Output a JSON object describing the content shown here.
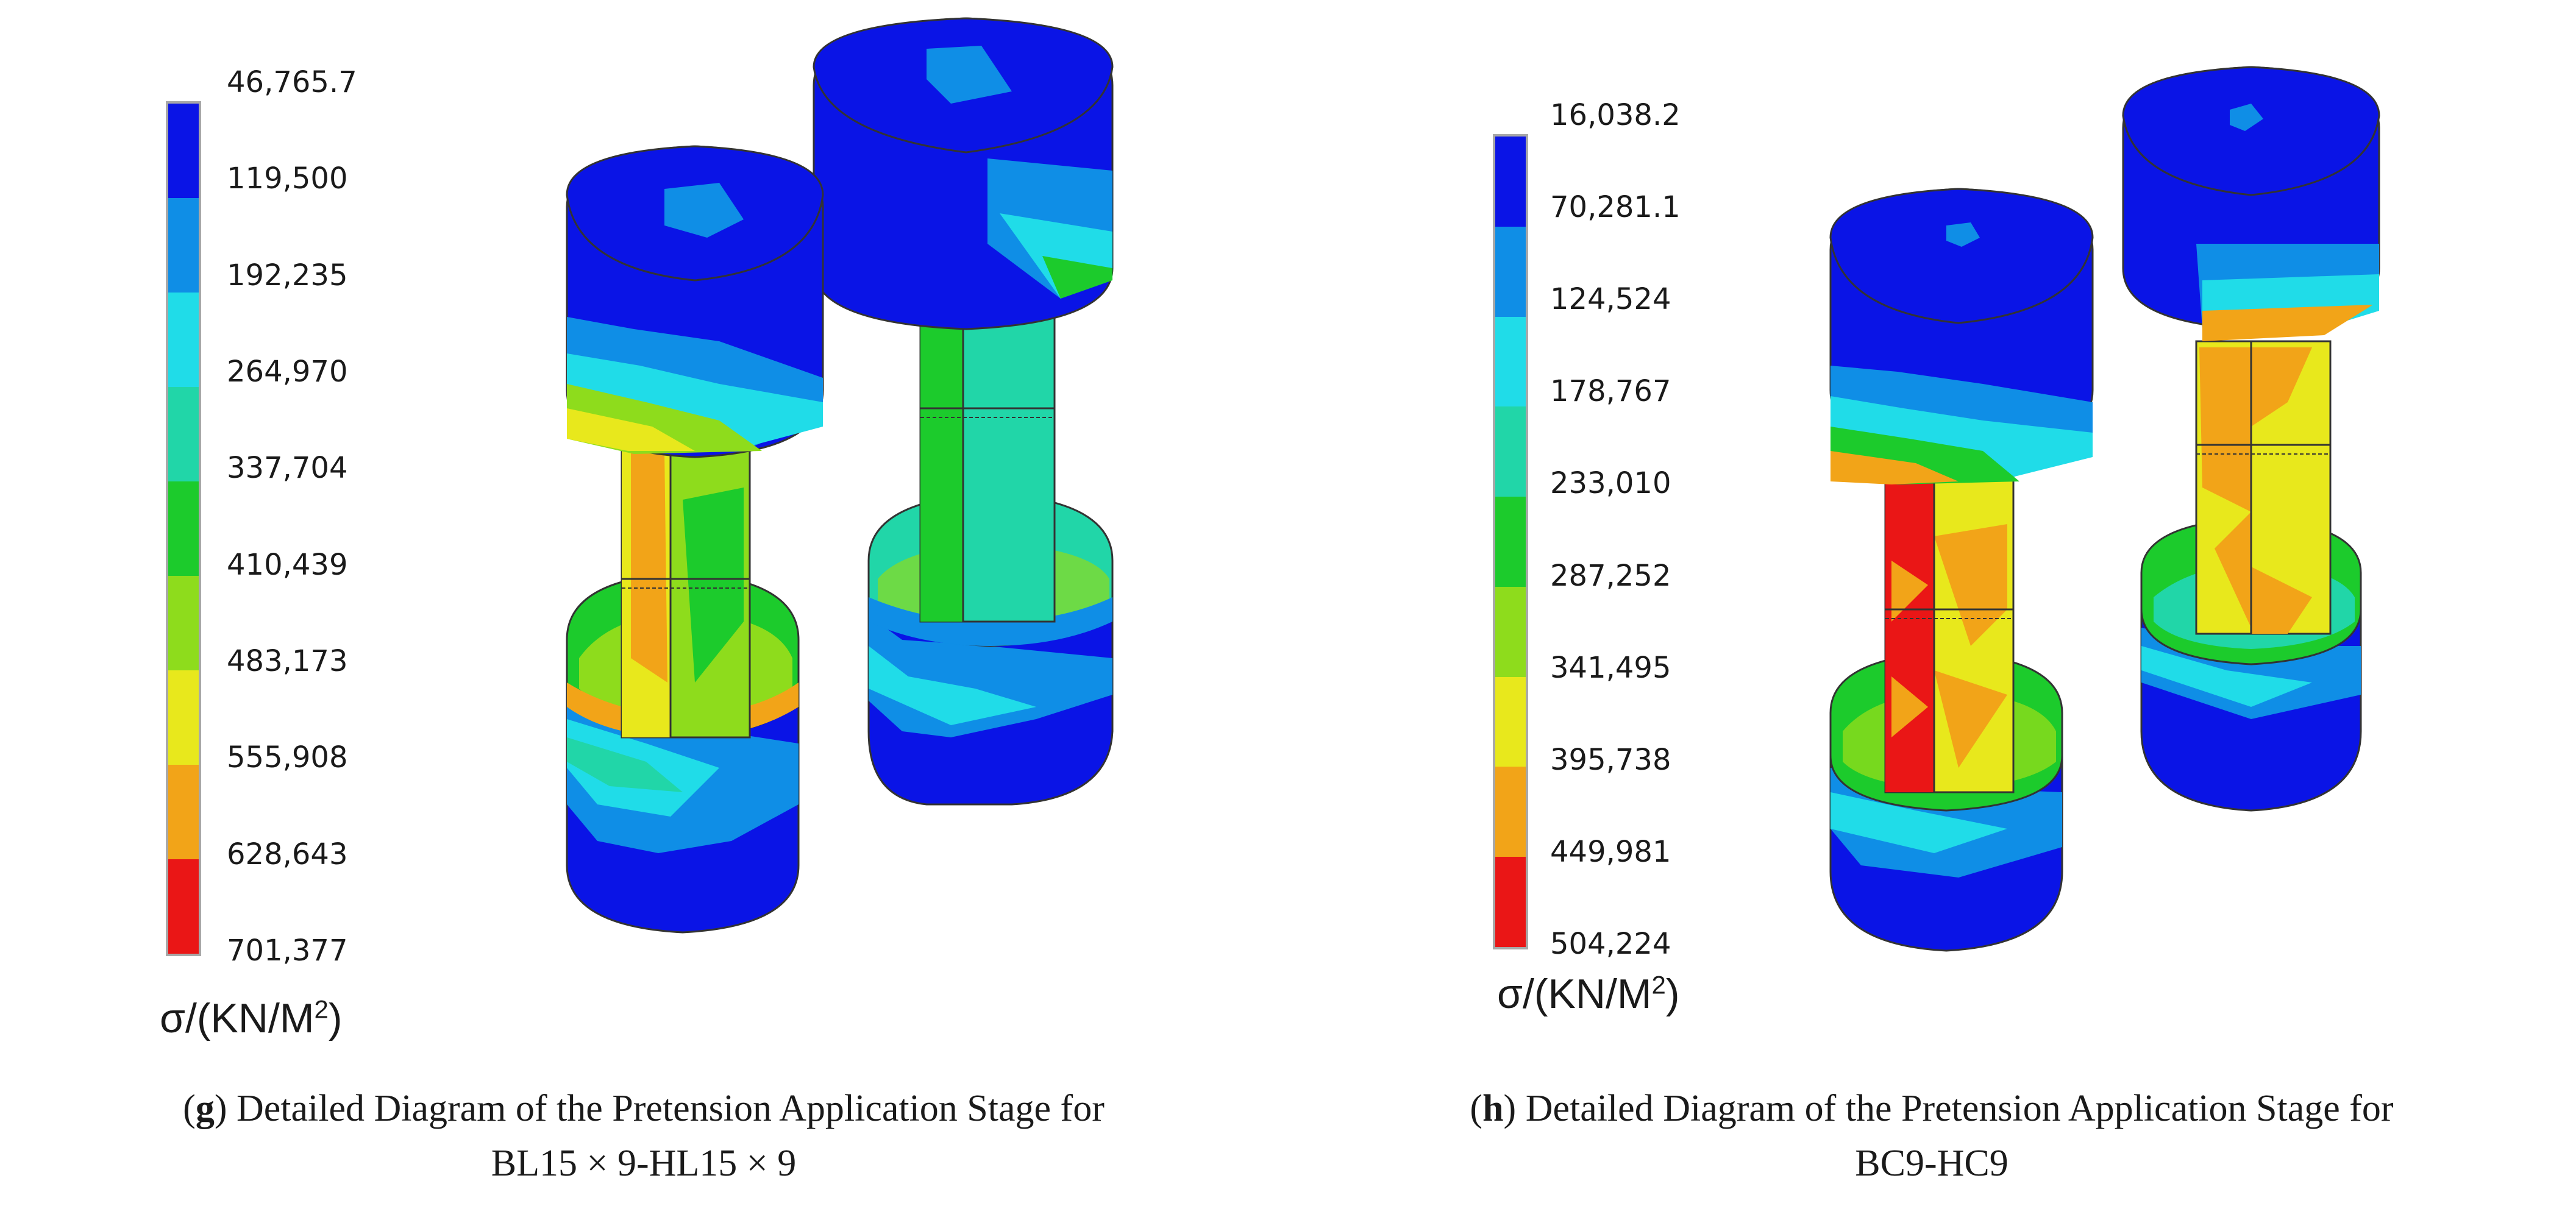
{
  "panels": [
    {
      "id": "g",
      "colorbar": {
        "ticks": [
          "46,765.7",
          "119,500",
          "192,235",
          "264,970",
          "337,704",
          "410,439",
          "483,173",
          "555,908",
          "628,643",
          "701,377"
        ],
        "colors": [
          "#0a14e6",
          "#0f8ee6",
          "#20dce8",
          "#21d6a8",
          "#1ccb2c",
          "#8edc1c",
          "#e8e81c",
          "#f2a418",
          "#ea1616"
        ]
      },
      "unit": {
        "prefix": "σ/(KN/M",
        "sup": "2",
        "suffix": ")"
      },
      "caption": {
        "letter": "g",
        "line1": ") Detailed Diagram of the Pretension Application Stage for",
        "line2": "BL15 × 9-HL15 × 9"
      }
    },
    {
      "id": "h",
      "colorbar": {
        "ticks": [
          "16,038.2",
          "70,281.1",
          "124,524",
          "178,767",
          "233,010",
          "287,252",
          "341,495",
          "395,738",
          "449,981",
          "504,224"
        ],
        "colors": [
          "#0a14e6",
          "#0f8ee6",
          "#20dce8",
          "#21d6a8",
          "#1ccb2c",
          "#8edc1c",
          "#e8e81c",
          "#f2a418",
          "#ea1616"
        ]
      },
      "unit": {
        "prefix": "σ/(KN/M",
        "sup": "2",
        "suffix": ")"
      },
      "caption": {
        "letter": "h",
        "line1": ") Detailed Diagram of the Pretension Application Stage for",
        "line2": "BC9-HC9"
      }
    }
  ]
}
